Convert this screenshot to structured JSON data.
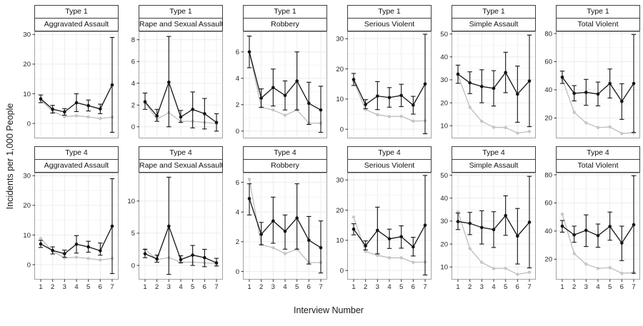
{
  "figure": {
    "xlabel": "Interview Number",
    "ylabel": "Incidents per 1,000 People"
  },
  "chart_data": {
    "type": "line",
    "title": "",
    "xlabel": "Interview Number",
    "ylabel": "Incidents per 1,000 People",
    "x": [
      1,
      2,
      3,
      4,
      5,
      6,
      7
    ],
    "facet_rows": [
      "Type 1",
      "Type 4"
    ],
    "facet_cols": [
      "Aggravated Assault",
      "Rape and Sexual Assault",
      "Robbery",
      "Serious Violent",
      "Simple Assault",
      "Total Violent"
    ],
    "series_names": [
      "black-points-with-95ci-error-bars",
      "gray-reference-line"
    ],
    "colors": {
      "black_series": "#141414",
      "gray_series": "#b9b9b9",
      "gridline": "#ececec",
      "panel_border": "#a3a3a3",
      "strip_border": "#3f3f3f"
    },
    "legend": "none",
    "grid": "on",
    "panels": [
      {
        "row": "Type 1",
        "col": "Aggravated Assault",
        "ylim": [
          -4.8,
          30.8
        ],
        "yticks": [
          0,
          10,
          20,
          30
        ],
        "black": {
          "y": [
            8.3,
            4.8,
            3.9,
            7.0,
            6.0,
            4.9,
            13.0
          ],
          "lo": [
            7.0,
            3.5,
            2.8,
            4.0,
            4.2,
            3.3,
            -3.0
          ],
          "hi": [
            9.6,
            6.1,
            5.0,
            10.0,
            7.9,
            6.5,
            29.0
          ]
        },
        "gray": [
          7.9,
          4.1,
          2.3,
          2.6,
          2.2,
          1.7,
          2.1
        ]
      },
      {
        "row": "Type 1",
        "col": "Rape and Sexual Assault",
        "ylim": [
          -1.0,
          8.7
        ],
        "yticks": [
          0,
          2,
          4,
          6,
          8
        ],
        "black": {
          "y": [
            2.3,
            1.0,
            4.1,
            0.9,
            1.6,
            1.2,
            0.4
          ],
          "lo": [
            1.6,
            0.5,
            0.0,
            0.4,
            -0.1,
            -0.2,
            -0.4
          ],
          "hi": [
            3.1,
            1.6,
            8.3,
            1.5,
            3.2,
            2.6,
            1.2
          ]
        },
        "gray": [
          2.2,
          0.7,
          1.3,
          0.5,
          0.5,
          0.4,
          0.3
        ]
      },
      {
        "row": "Type 1",
        "col": "Robbery",
        "ylim": [
          -0.5,
          7.5
        ],
        "yticks": [
          0,
          2,
          4,
          6
        ],
        "black": {
          "y": [
            6.0,
            2.5,
            3.3,
            2.7,
            3.8,
            2.1,
            1.6
          ],
          "lo": [
            4.8,
            1.8,
            1.9,
            1.6,
            1.6,
            0.5,
            -0.1
          ],
          "hi": [
            7.2,
            3.2,
            4.7,
            3.8,
            6.0,
            3.7,
            3.4
          ]
        },
        "gray": [
          6.0,
          1.8,
          1.6,
          1.2,
          1.6,
          0.6,
          0.6
        ]
      },
      {
        "row": "Type 1",
        "col": "Serious Violent",
        "ylim": [
          -2.8,
          32.2
        ],
        "yticks": [
          0,
          10,
          20,
          30
        ],
        "black": {
          "y": [
            16.5,
            8.2,
            11.0,
            10.5,
            11.2,
            8.0,
            15.0
          ],
          "lo": [
            14.5,
            6.8,
            6.5,
            7.3,
            7.5,
            5.0,
            -1.5
          ],
          "hi": [
            18.5,
            9.8,
            15.8,
            13.8,
            14.9,
            10.9,
            31.5
          ]
        },
        "gray": [
          16.0,
          6.5,
          4.8,
          4.2,
          4.3,
          2.7,
          2.8
        ]
      },
      {
        "row": "Type 1",
        "col": "Simple Assault",
        "ylim": [
          4.8,
          50.8
        ],
        "yticks": [
          10,
          20,
          30,
          40,
          50
        ],
        "black": {
          "y": [
            32.5,
            28.7,
            27.1,
            26.3,
            33.2,
            23.8,
            29.5
          ],
          "lo": [
            28.5,
            24.0,
            20.0,
            18.6,
            24.4,
            11.5,
            9.6
          ],
          "hi": [
            36.4,
            33.5,
            34.4,
            34.0,
            42.0,
            36.0,
            49.5
          ]
        },
        "gray": [
          32.0,
          18.0,
          11.9,
          9.3,
          9.2,
          6.8,
          7.5
        ]
      },
      {
        "row": "Type 1",
        "col": "Total Violent",
        "ylim": [
          6.0,
          81.0
        ],
        "yticks": [
          20,
          40,
          60,
          80
        ],
        "black": {
          "y": [
            49.0,
            37.5,
            38.2,
            37.0,
            44.5,
            31.8,
            44.5
          ],
          "lo": [
            44.5,
            32.1,
            29.0,
            28.6,
            34.2,
            19.0,
            9.7
          ],
          "hi": [
            53.3,
            43.0,
            47.4,
            45.5,
            54.8,
            44.3,
            79.3
          ]
        },
        "gray": [
          48.0,
          24.0,
          16.5,
          13.2,
          13.6,
          9.0,
          9.5
        ]
      },
      {
        "row": "Type 4",
        "col": "Aggravated Assault",
        "ylim": [
          -4.8,
          30.8
        ],
        "yticks": [
          0,
          10,
          20,
          30
        ],
        "black": {
          "y": [
            7.0,
            4.8,
            3.7,
            6.9,
            6.0,
            4.7,
            13.0
          ],
          "lo": [
            5.8,
            3.6,
            2.5,
            3.9,
            4.2,
            3.2,
            -3.0
          ],
          "hi": [
            8.2,
            6.0,
            4.9,
            9.8,
            7.9,
            7.3,
            29.0
          ]
        },
        "gray": [
          8.8,
          4.5,
          2.3,
          2.5,
          2.1,
          1.6,
          2.1
        ]
      },
      {
        "row": "Type 4",
        "col": "Rape and Sexual Assault",
        "ylim": [
          -2.1,
          14.3
        ],
        "yticks": [
          0,
          5,
          10
        ],
        "black": {
          "y": [
            1.8,
            1.0,
            6.1,
            0.9,
            1.6,
            1.2,
            0.4
          ],
          "lo": [
            1.2,
            0.5,
            -1.4,
            0.4,
            0.0,
            -0.2,
            -0.1
          ],
          "hi": [
            2.5,
            1.6,
            13.7,
            1.5,
            3.1,
            2.5,
            1.1
          ]
        },
        "gray": [
          2.5,
          0.9,
          1.2,
          0.5,
          0.5,
          0.4,
          0.3
        ]
      },
      {
        "row": "Type 4",
        "col": "Robbery",
        "ylim": [
          -0.5,
          6.6
        ],
        "yticks": [
          0,
          2,
          4,
          6
        ],
        "black": {
          "y": [
            4.9,
            2.5,
            3.4,
            2.7,
            3.6,
            2.1,
            1.6
          ],
          "lo": [
            3.8,
            1.8,
            1.9,
            1.5,
            1.5,
            0.5,
            -0.1
          ],
          "hi": [
            5.9,
            3.3,
            5.0,
            3.8,
            5.9,
            3.7,
            3.4
          ]
        },
        "gray": [
          6.2,
          1.8,
          1.6,
          1.2,
          1.5,
          0.6,
          0.6
        ]
      },
      {
        "row": "Type 4",
        "col": "Serious Violent",
        "ylim": [
          -2.8,
          32.2
        ],
        "yticks": [
          0,
          10,
          20,
          30
        ],
        "black": {
          "y": [
            13.7,
            8.2,
            13.3,
            10.5,
            11.2,
            7.8,
            15.0
          ],
          "lo": [
            11.8,
            6.8,
            5.5,
            7.3,
            7.4,
            4.8,
            -1.5
          ],
          "hi": [
            15.5,
            9.8,
            21.0,
            13.7,
            14.8,
            11.0,
            31.5
          ]
        },
        "gray": [
          17.7,
          6.3,
          5.0,
          4.2,
          4.2,
          2.7,
          2.8
        ]
      },
      {
        "row": "Type 4",
        "col": "Simple Assault",
        "ylim": [
          4.8,
          50.8
        ],
        "yticks": [
          10,
          20,
          30,
          40,
          50
        ],
        "black": {
          "y": [
            29.8,
            29.0,
            27.2,
            26.3,
            32.4,
            23.5,
            29.5
          ],
          "lo": [
            26.3,
            24.1,
            20.0,
            18.5,
            23.8,
            11.3,
            9.6
          ],
          "hi": [
            33.5,
            33.8,
            34.5,
            34.1,
            41.0,
            35.5,
            49.5
          ]
        },
        "gray": [
          34.0,
          18.0,
          12.0,
          9.3,
          9.4,
          6.8,
          7.7
        ]
      },
      {
        "row": "Type 4",
        "col": "Total Violent",
        "ylim": [
          6.0,
          81.0
        ],
        "yticks": [
          20,
          40,
          60,
          80
        ],
        "black": {
          "y": [
            43.5,
            37.3,
            40.5,
            36.8,
            43.3,
            31.5,
            44.5
          ],
          "lo": [
            39.2,
            32.0,
            29.0,
            28.5,
            33.5,
            19.0,
            10.0
          ],
          "hi": [
            47.5,
            43.5,
            51.5,
            45.0,
            53.5,
            43.5,
            79.3
          ]
        },
        "gray": [
          52.0,
          24.0,
          16.5,
          13.5,
          14.0,
          10.0,
          10.5
        ]
      }
    ]
  }
}
